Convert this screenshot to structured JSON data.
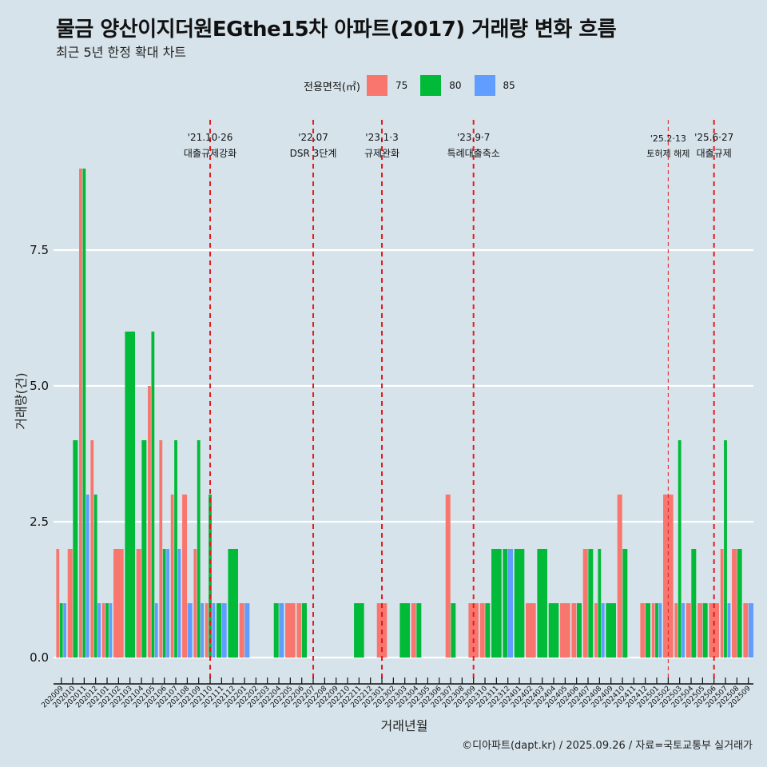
{
  "header": {
    "title": "물금 양산이지더원EGthe15차 아파트(2017) 거래량 변화 흐름",
    "subtitle": "최근 5년 한정 확대 차트"
  },
  "legend": {
    "title": "전용면적(㎡)",
    "items": [
      {
        "label": "75",
        "color": "#F8766D"
      },
      {
        "label": "80",
        "color": "#00BA38"
      },
      {
        "label": "85",
        "color": "#619CFF"
      }
    ]
  },
  "caption": "©디아파트(dapt.kr) / 2025.09.26 / 자료=국토교통부 실거래가",
  "chart_data": {
    "type": "bar",
    "layout": "dodge",
    "title": "물금 양산이지더원EGthe15차 아파트(2017) 거래량 변화 흐름",
    "subtitle": "최근 5년 한정 확대 차트",
    "xlabel": "거래년월",
    "ylabel": "거래량(건)",
    "ylim": [
      0,
      9
    ],
    "yticks": [
      "0.0",
      "2.5",
      "5.0",
      "7.5"
    ],
    "ytick_values": [
      0,
      2.5,
      5,
      7.5
    ],
    "grid": true,
    "legend_position": "top",
    "categories": [
      "202009",
      "202010",
      "202011",
      "202012",
      "202101",
      "202102",
      "202103",
      "202104",
      "202105",
      "202106",
      "202107",
      "202108",
      "202109",
      "202110",
      "202111",
      "202112",
      "202201",
      "202202",
      "202203",
      "202204",
      "202205",
      "202206",
      "202207",
      "202208",
      "202209",
      "202210",
      "202211",
      "202212",
      "202301",
      "202302",
      "202303",
      "202304",
      "202305",
      "202306",
      "202307",
      "202308",
      "202309",
      "202310",
      "202311",
      "202312",
      "202401",
      "202402",
      "202403",
      "202404",
      "202405",
      "202406",
      "202407",
      "202408",
      "202409",
      "202410",
      "202411",
      "202412",
      "202501",
      "202502",
      "202503",
      "202504",
      "202505",
      "202506",
      "202507",
      "202508",
      "202509"
    ],
    "series": [
      {
        "name": "75",
        "color": "#F8766D",
        "values": [
          2,
          2,
          9,
          4,
          1,
          2,
          null,
          2,
          5,
          4,
          3,
          3,
          2,
          1,
          null,
          null,
          1,
          null,
          null,
          null,
          1,
          1,
          null,
          null,
          null,
          null,
          null,
          null,
          1,
          null,
          null,
          1,
          null,
          null,
          3,
          null,
          1,
          1,
          null,
          null,
          null,
          1,
          null,
          null,
          1,
          1,
          2,
          1,
          null,
          3,
          null,
          1,
          1,
          3,
          1,
          1,
          1,
          1,
          2,
          2,
          1
        ]
      },
      {
        "name": "80",
        "color": "#00BA38",
        "values": [
          1,
          4,
          9,
          3,
          1,
          null,
          6,
          4,
          6,
          2,
          4,
          null,
          4,
          3,
          1,
          2,
          null,
          null,
          null,
          1,
          null,
          1,
          null,
          null,
          null,
          null,
          1,
          null,
          null,
          null,
          1,
          1,
          null,
          null,
          1,
          null,
          null,
          1,
          2,
          2,
          2,
          null,
          2,
          1,
          null,
          1,
          2,
          2,
          1,
          2,
          null,
          1,
          1,
          null,
          4,
          2,
          1,
          null,
          4,
          2,
          null
        ]
      },
      {
        "name": "85",
        "color": "#619CFF",
        "values": [
          1,
          null,
          3,
          1,
          1,
          null,
          null,
          null,
          1,
          2,
          2,
          1,
          1,
          1,
          1,
          null,
          1,
          null,
          null,
          1,
          null,
          null,
          null,
          null,
          null,
          null,
          null,
          null,
          null,
          null,
          null,
          null,
          null,
          null,
          null,
          null,
          null,
          null,
          null,
          2,
          null,
          null,
          null,
          null,
          null,
          null,
          null,
          1,
          null,
          null,
          null,
          null,
          1,
          null,
          1,
          null,
          null,
          null,
          1,
          null,
          1
        ]
      }
    ],
    "annotations": [
      {
        "month": "202110",
        "date": "'21.10·26",
        "label": "대출규제강화",
        "style": "major"
      },
      {
        "month": "202207",
        "date": "'22.07",
        "label": "DSR 3단계",
        "style": "major"
      },
      {
        "month": "202301",
        "date": "'23.1·3",
        "label": "규제완화",
        "style": "major"
      },
      {
        "month": "202309",
        "date": "'23.9·7",
        "label": "특례대출축소",
        "style": "major"
      },
      {
        "month": "202502",
        "date": "'25.2·13",
        "label": "토허제 해제",
        "style": "minor"
      },
      {
        "month": "202506",
        "date": "'25.6·27",
        "label": "대출규제",
        "style": "major"
      }
    ],
    "annotation_color": "#E41A1C"
  }
}
